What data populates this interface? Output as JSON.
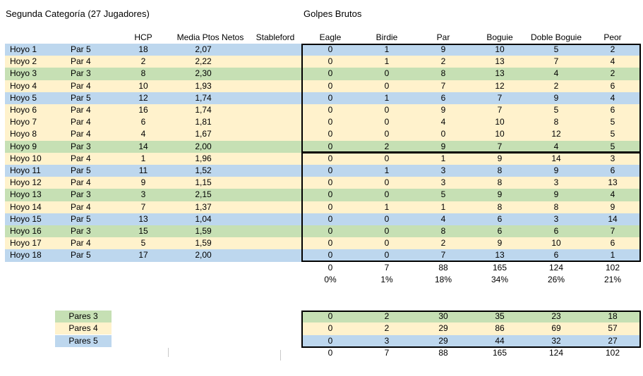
{
  "titles": {
    "left": "Segunda Categoría (27 Jugadores)",
    "right": "Golpes Brutos"
  },
  "colors": {
    "par3": "#C6E0B4",
    "par4": "#FFF2CC",
    "par5": "#BDD7EE"
  },
  "left_headers": {
    "hcp": "HCP",
    "media": "Media Ptos Netos",
    "stableford": "Stableford"
  },
  "right_headers": [
    "Eagle",
    "Birdie",
    "Par",
    "Boguie",
    "Doble Boguie",
    "Peor"
  ],
  "holes": [
    {
      "name": "Hoyo 1",
      "par": "Par 5",
      "par_type": "par5",
      "hcp": "18",
      "media": "2,07",
      "scores": [
        "0",
        "1",
        "9",
        "10",
        "5",
        "2"
      ]
    },
    {
      "name": "Hoyo 2",
      "par": "Par 4",
      "par_type": "par4",
      "hcp": "2",
      "media": "2,22",
      "scores": [
        "0",
        "1",
        "2",
        "13",
        "7",
        "4"
      ]
    },
    {
      "name": "Hoyo 3",
      "par": "Par 3",
      "par_type": "par3",
      "hcp": "8",
      "media": "2,30",
      "scores": [
        "0",
        "0",
        "8",
        "13",
        "4",
        "2"
      ]
    },
    {
      "name": "Hoyo 4",
      "par": "Par 4",
      "par_type": "par4",
      "hcp": "10",
      "media": "1,93",
      "scores": [
        "0",
        "0",
        "7",
        "12",
        "2",
        "6"
      ]
    },
    {
      "name": "Hoyo 5",
      "par": "Par 5",
      "par_type": "par5",
      "hcp": "12",
      "media": "1,74",
      "scores": [
        "0",
        "1",
        "6",
        "7",
        "9",
        "4"
      ]
    },
    {
      "name": "Hoyo 6",
      "par": "Par 4",
      "par_type": "par4",
      "hcp": "16",
      "media": "1,74",
      "scores": [
        "0",
        "0",
        "9",
        "7",
        "5",
        "6"
      ]
    },
    {
      "name": "Hoyo 7",
      "par": "Par 4",
      "par_type": "par4",
      "hcp": "6",
      "media": "1,81",
      "scores": [
        "0",
        "0",
        "4",
        "10",
        "8",
        "5"
      ]
    },
    {
      "name": "Hoyo 8",
      "par": "Par 4",
      "par_type": "par4",
      "hcp": "4",
      "media": "1,67",
      "scores": [
        "0",
        "0",
        "0",
        "10",
        "12",
        "5"
      ]
    },
    {
      "name": "Hoyo 9",
      "par": "Par 3",
      "par_type": "par3",
      "hcp": "14",
      "media": "2,00",
      "scores": [
        "0",
        "2",
        "9",
        "7",
        "4",
        "5"
      ]
    },
    {
      "name": "Hoyo 10",
      "par": "Par 4",
      "par_type": "par4",
      "hcp": "1",
      "media": "1,96",
      "scores": [
        "0",
        "0",
        "1",
        "9",
        "14",
        "3"
      ]
    },
    {
      "name": "Hoyo 11",
      "par": "Par 5",
      "par_type": "par5",
      "hcp": "11",
      "media": "1,52",
      "scores": [
        "0",
        "1",
        "3",
        "8",
        "9",
        "6"
      ]
    },
    {
      "name": "Hoyo 12",
      "par": "Par 4",
      "par_type": "par4",
      "hcp": "9",
      "media": "1,15",
      "scores": [
        "0",
        "0",
        "3",
        "8",
        "3",
        "13"
      ]
    },
    {
      "name": "Hoyo 13",
      "par": "Par 3",
      "par_type": "par3",
      "hcp": "3",
      "media": "2,15",
      "scores": [
        "0",
        "0",
        "5",
        "9",
        "9",
        "4"
      ]
    },
    {
      "name": "Hoyo 14",
      "par": "Par 4",
      "par_type": "par4",
      "hcp": "7",
      "media": "1,37",
      "scores": [
        "0",
        "1",
        "1",
        "8",
        "8",
        "9"
      ]
    },
    {
      "name": "Hoyo 15",
      "par": "Par 5",
      "par_type": "par5",
      "hcp": "13",
      "media": "1,04",
      "scores": [
        "0",
        "0",
        "4",
        "6",
        "3",
        "14"
      ]
    },
    {
      "name": "Hoyo 16",
      "par": "Par 3",
      "par_type": "par3",
      "hcp": "15",
      "media": "1,59",
      "scores": [
        "0",
        "0",
        "8",
        "6",
        "6",
        "7"
      ]
    },
    {
      "name": "Hoyo 17",
      "par": "Par 4",
      "par_type": "par4",
      "hcp": "5",
      "media": "1,59",
      "scores": [
        "0",
        "0",
        "2",
        "9",
        "10",
        "6"
      ]
    },
    {
      "name": "Hoyo 18",
      "par": "Par 5",
      "par_type": "par5",
      "hcp": "17",
      "media": "2,00",
      "scores": [
        "0",
        "0",
        "7",
        "13",
        "6",
        "1"
      ]
    }
  ],
  "totals": {
    "values": [
      "0",
      "7",
      "88",
      "165",
      "124",
      "102"
    ],
    "percents": [
      "0%",
      "1%",
      "18%",
      "34%",
      "26%",
      "21%"
    ]
  },
  "legend": [
    {
      "label": "Pares 3",
      "type": "par3"
    },
    {
      "label": "Pares 4",
      "type": "par4"
    },
    {
      "label": "Pares 5",
      "type": "par5"
    }
  ],
  "pares_summary": [
    {
      "label": "Pares 3",
      "type": "par3",
      "scores": [
        "0",
        "2",
        "30",
        "35",
        "23",
        "18"
      ]
    },
    {
      "label": "Pares 4",
      "type": "par4",
      "scores": [
        "0",
        "2",
        "29",
        "86",
        "69",
        "57"
      ]
    },
    {
      "label": "Pares 5",
      "type": "par5",
      "scores": [
        "0",
        "3",
        "29",
        "44",
        "32",
        "27"
      ]
    }
  ],
  "pares_total": [
    "0",
    "7",
    "88",
    "165",
    "124",
    "102"
  ]
}
